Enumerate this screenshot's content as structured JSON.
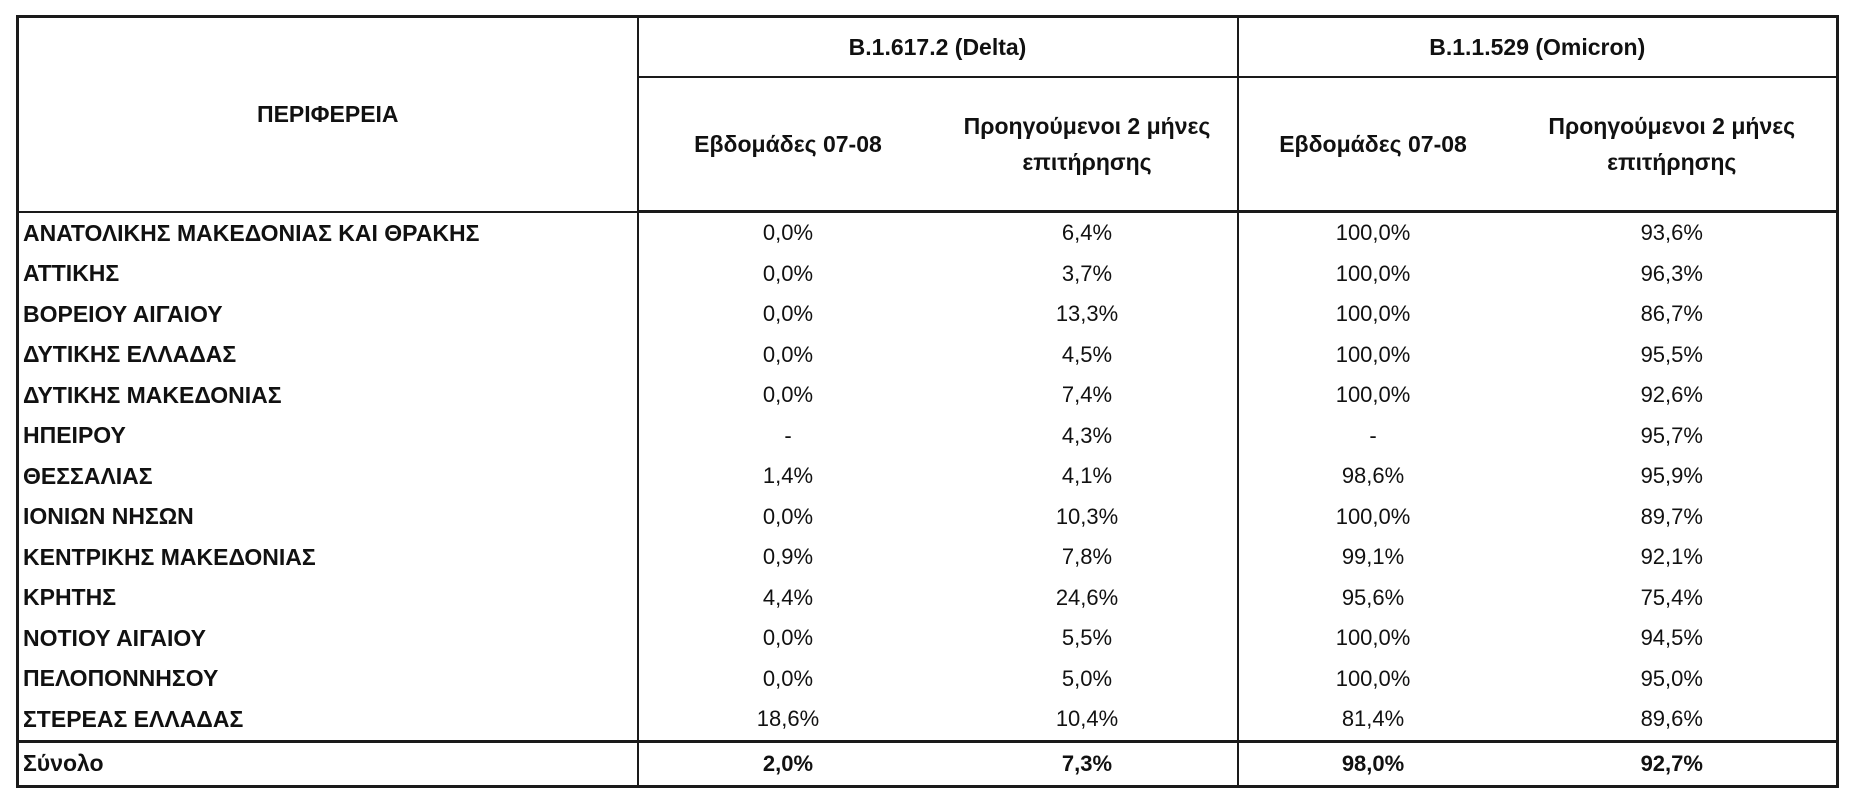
{
  "header": {
    "region_label": "ΠΕΡΙΦΕΡΕΙΑ",
    "delta_label": "B.1.617.2 (Delta)",
    "omicron_label": "B.1.1.529 (Omicron)",
    "weeks_label": "Εβδομάδες 07-08",
    "months_label": "Προηγούμενοι 2 μήνες επιτήρησης"
  },
  "rows": [
    {
      "region": "ΑΝΑΤΟΛΙΚΗΣ ΜΑΚΕΔΟΝΙΑΣ ΚΑΙ ΘΡΑΚΗΣ",
      "delta_weeks": "0,0%",
      "delta_months": "6,4%",
      "omicron_weeks": "100,0%",
      "omicron_months": "93,6%"
    },
    {
      "region": "ΑΤΤΙΚΗΣ",
      "delta_weeks": "0,0%",
      "delta_months": "3,7%",
      "omicron_weeks": "100,0%",
      "omicron_months": "96,3%"
    },
    {
      "region": "ΒΟΡΕΙΟΥ ΑΙΓΑΙΟΥ",
      "delta_weeks": "0,0%",
      "delta_months": "13,3%",
      "omicron_weeks": "100,0%",
      "omicron_months": "86,7%"
    },
    {
      "region": "ΔΥΤΙΚΗΣ ΕΛΛΑΔΑΣ",
      "delta_weeks": "0,0%",
      "delta_months": "4,5%",
      "omicron_weeks": "100,0%",
      "omicron_months": "95,5%"
    },
    {
      "region": "ΔΥΤΙΚΗΣ ΜΑΚΕΔΟΝΙΑΣ",
      "delta_weeks": "0,0%",
      "delta_months": "7,4%",
      "omicron_weeks": "100,0%",
      "omicron_months": "92,6%"
    },
    {
      "region": "ΗΠΕΙΡΟΥ",
      "delta_weeks": "-",
      "delta_months": "4,3%",
      "omicron_weeks": "-",
      "omicron_months": "95,7%"
    },
    {
      "region": "ΘΕΣΣΑΛΙΑΣ",
      "delta_weeks": "1,4%",
      "delta_months": "4,1%",
      "omicron_weeks": "98,6%",
      "omicron_months": "95,9%"
    },
    {
      "region": "ΙΟΝΙΩΝ ΝΗΣΩΝ",
      "delta_weeks": "0,0%",
      "delta_months": "10,3%",
      "omicron_weeks": "100,0%",
      "omicron_months": "89,7%"
    },
    {
      "region": "ΚΕΝΤΡΙΚΗΣ ΜΑΚΕΔΟΝΙΑΣ",
      "delta_weeks": "0,9%",
      "delta_months": "7,8%",
      "omicron_weeks": "99,1%",
      "omicron_months": "92,1%"
    },
    {
      "region": "ΚΡΗΤΗΣ",
      "delta_weeks": "4,4%",
      "delta_months": "24,6%",
      "omicron_weeks": "95,6%",
      "omicron_months": "75,4%"
    },
    {
      "region": "ΝΟΤΙΟΥ ΑΙΓΑΙΟΥ",
      "delta_weeks": "0,0%",
      "delta_months": "5,5%",
      "omicron_weeks": "100,0%",
      "omicron_months": "94,5%"
    },
    {
      "region": "ΠΕΛΟΠΟΝΝΗΣΟΥ",
      "delta_weeks": "0,0%",
      "delta_months": "5,0%",
      "omicron_weeks": "100,0%",
      "omicron_months": "95,0%"
    },
    {
      "region": "ΣΤΕΡΕΑΣ ΕΛΛΑΔΑΣ",
      "delta_weeks": "18,6%",
      "delta_months": "10,4%",
      "omicron_weeks": "81,4%",
      "omicron_months": "89,6%"
    }
  ],
  "total": {
    "region": "Σύνολο",
    "delta_weeks": "2,0%",
    "delta_months": "7,3%",
    "omicron_weeks": "98,0%",
    "omicron_months": "92,7%"
  }
}
